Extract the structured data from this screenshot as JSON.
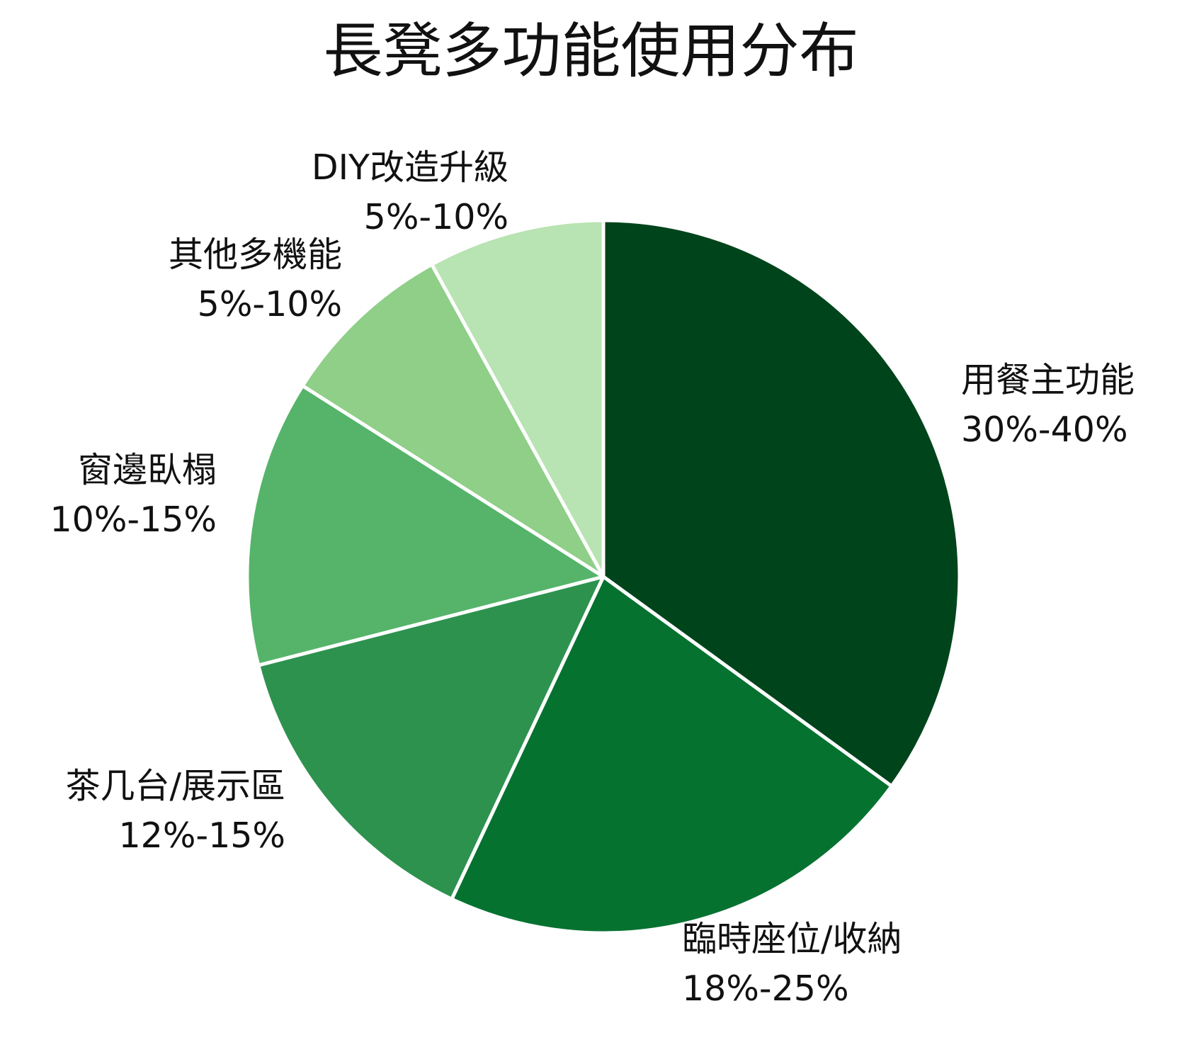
{
  "chart_data": {
    "type": "pie",
    "title": "長凳多功能使用分布",
    "slices": [
      {
        "name": "用餐主功能",
        "range": "30%-40%",
        "value": 35,
        "color": "#00441b"
      },
      {
        "name": "臨時座位/收納",
        "range": "18%-25%",
        "value": 22,
        "color": "#067230"
      },
      {
        "name": "茶几台/展示區",
        "range": "12%-15%",
        "value": 14,
        "color": "#2d924e"
      },
      {
        "name": "窗邊臥榻",
        "range": "10%-15%",
        "value": 13,
        "color": "#55b46a"
      },
      {
        "name": "其他多機能",
        "range": "5%-10%",
        "value": 8,
        "color": "#8fcf88"
      },
      {
        "name": "DIY改造升級",
        "range": "5%-10%",
        "value": 8,
        "color": "#b8e3b2"
      }
    ],
    "start_angle": "12 o'clock",
    "direction": "clockwise",
    "slice_border_color": "#ffffff"
  }
}
